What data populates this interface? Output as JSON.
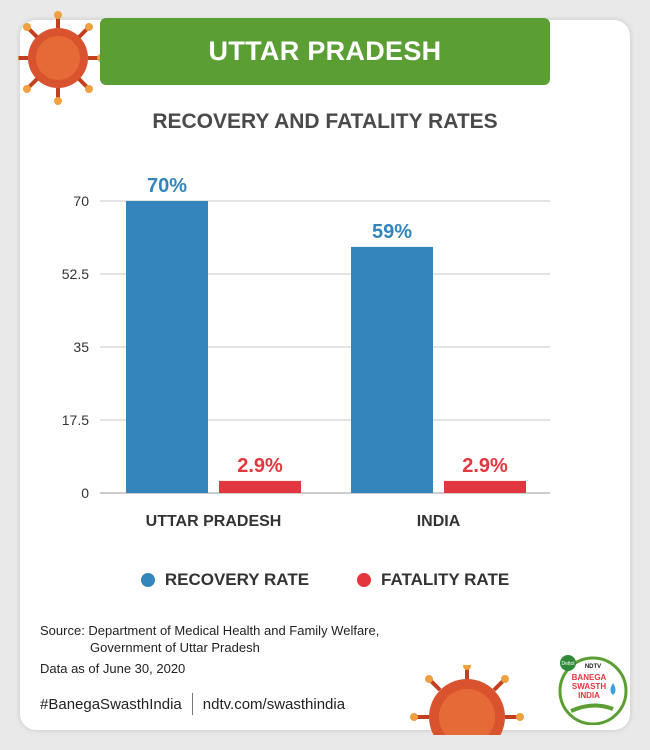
{
  "header": {
    "state": "UTTAR PRADESH"
  },
  "colors": {
    "recovery": "#3485bb",
    "fatality": "#e2373e",
    "banner": "#5a9e34"
  },
  "chart_data": {
    "type": "bar",
    "title": "RECOVERY AND FATALITY RATES",
    "categories": [
      "UTTAR PRADESH",
      "INDIA"
    ],
    "series": [
      {
        "name": "RECOVERY RATE",
        "values": [
          70,
          59
        ],
        "labels": [
          "70%",
          "59%"
        ]
      },
      {
        "name": "FATALITY RATE",
        "values": [
          2.9,
          2.9
        ],
        "labels": [
          "2.9%",
          "2.9%"
        ]
      }
    ],
    "yticks": [
      "0",
      "17.5",
      "35",
      "52.5",
      "70"
    ],
    "ylim": [
      0,
      70
    ],
    "grid": true,
    "legend_position": "bottom"
  },
  "source": {
    "line1": "Source: Department of Medical Health and Family Welfare,",
    "line2": "Government of Uttar Pradesh",
    "date": "Data as of June 30, 2020"
  },
  "footer": {
    "hashtag": "#BanegaSwasthIndia",
    "url": "ndtv.com/swasthindia"
  },
  "logo": {
    "brand1": "Dettol",
    "brand2": "NDTV",
    "line1": "BANEGA",
    "line2": "SWASTH",
    "line3": "INDIA"
  }
}
